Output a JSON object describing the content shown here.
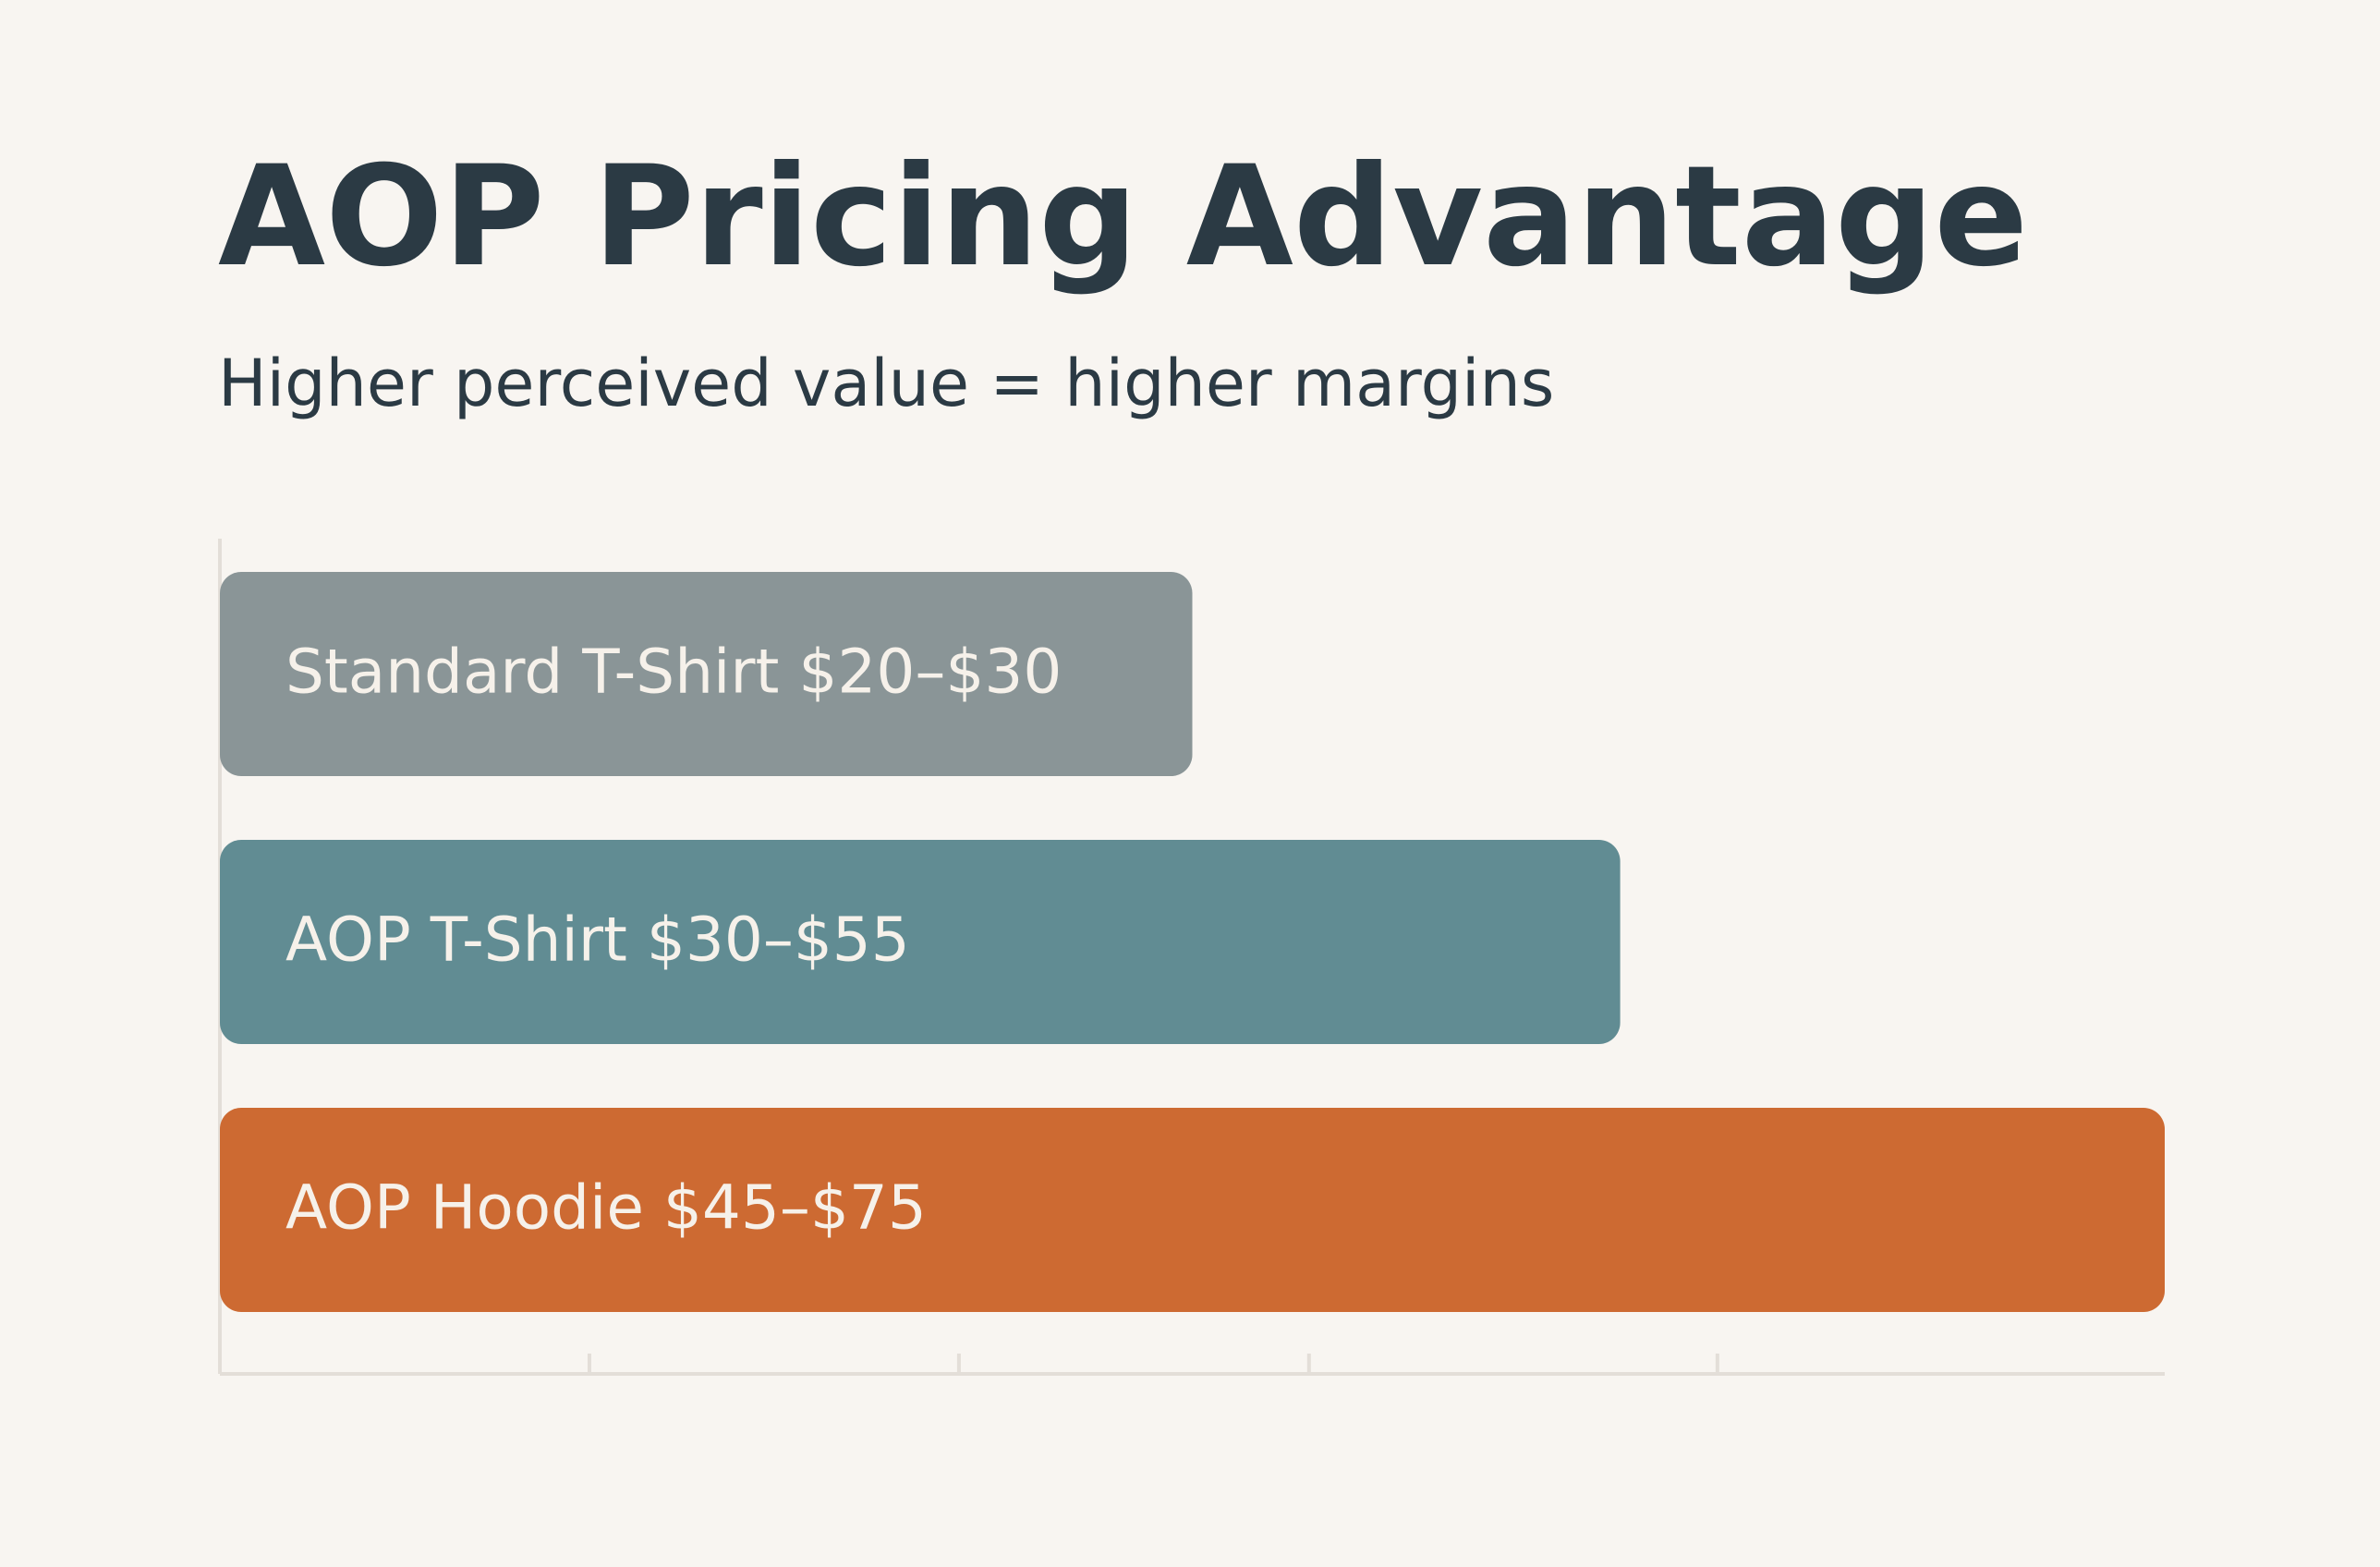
{
  "chart_data": {
    "type": "bar",
    "orientation": "horizontal",
    "title": "AOP Pricing Advantage",
    "subtitle": "Higher perceived value = higher margins",
    "categories": [
      "Standard T-Shirt $20–$30",
      "AOP T-Shirt $30–$55",
      "AOP Hoodie $45–$75"
    ],
    "values": [
      50,
      72,
      100
    ],
    "colors": [
      "#8a9597",
      "#618c93",
      "#cd6a32"
    ],
    "xlim": [
      0,
      100
    ],
    "xticks": [
      19,
      38,
      56,
      77
    ]
  }
}
